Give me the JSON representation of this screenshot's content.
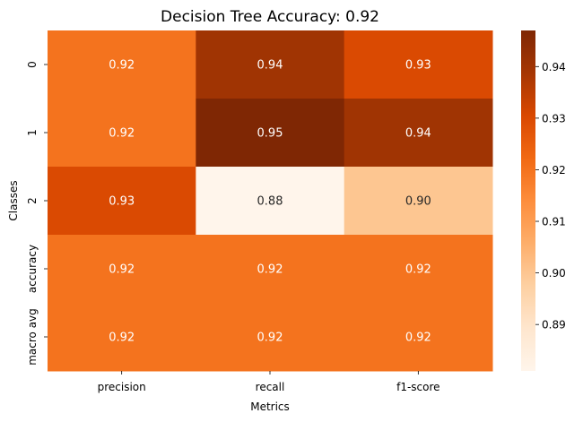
{
  "chart_data": {
    "type": "heatmap",
    "title": "Decision Tree Accuracy: 0.92",
    "xlabel": "Metrics",
    "ylabel": "Classes",
    "columns": [
      "precision",
      "recall",
      "f1-score"
    ],
    "rows": [
      "0",
      "1",
      "2",
      "accuracy",
      "macro avg"
    ],
    "values": [
      [
        0.92,
        0.94,
        0.93
      ],
      [
        0.92,
        0.95,
        0.94
      ],
      [
        0.93,
        0.88,
        0.9
      ],
      [
        0.92,
        0.92,
        0.92
      ],
      [
        0.92,
        0.92,
        0.92
      ]
    ],
    "cell_labels": [
      [
        "0.92",
        "0.94",
        "0.93"
      ],
      [
        "0.92",
        "0.95",
        "0.94"
      ],
      [
        "0.93",
        "0.88",
        "0.90"
      ],
      [
        "0.92",
        "0.92",
        "0.92"
      ],
      [
        "0.92",
        "0.92",
        "0.92"
      ]
    ],
    "colormap": "Oranges",
    "colorbar": {
      "vmin": 0.881,
      "vmax": 0.947,
      "ticks": [
        0.89,
        0.9,
        0.91,
        0.92,
        0.93,
        0.94
      ],
      "tick_labels": [
        "0.89",
        "0.90",
        "0.91",
        "0.92",
        "0.93",
        "0.94"
      ]
    },
    "grid": false,
    "legend": "colorbar-right"
  }
}
